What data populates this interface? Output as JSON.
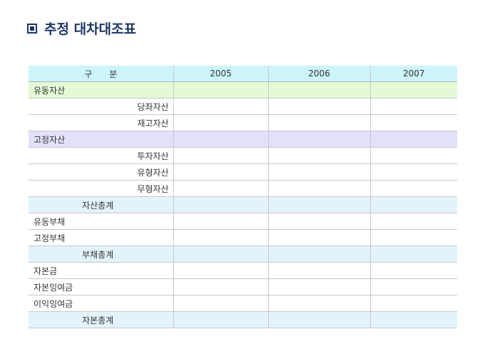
{
  "title": "추정 대차대조표",
  "table": {
    "headers": [
      "구　　분",
      "2005",
      "2006",
      "2007"
    ],
    "rows": [
      {
        "label": "유동자산",
        "type": "green",
        "indent": 0
      },
      {
        "label": "당좌자산",
        "type": "normal",
        "indent": 1
      },
      {
        "label": "재고자산",
        "type": "normal",
        "indent": 1
      },
      {
        "label": "고정자산",
        "type": "purple",
        "indent": 0
      },
      {
        "label": "투자자산",
        "type": "normal",
        "indent": 1
      },
      {
        "label": "유형자산",
        "type": "normal",
        "indent": 1
      },
      {
        "label": "무형자산",
        "type": "normal",
        "indent": 1
      },
      {
        "label": "자산총계",
        "type": "total",
        "indent": 2
      },
      {
        "label": "유동부채",
        "type": "normal",
        "indent": 0
      },
      {
        "label": "고정부채",
        "type": "normal",
        "indent": 0
      },
      {
        "label": "부채총계",
        "type": "total",
        "indent": 2
      },
      {
        "label": "자본금",
        "type": "normal",
        "indent": 0
      },
      {
        "label": "자본잉여금",
        "type": "normal",
        "indent": 0
      },
      {
        "label": "이익잉여금",
        "type": "normal",
        "indent": 0
      },
      {
        "label": "자본총계",
        "type": "total",
        "indent": 2
      }
    ]
  }
}
